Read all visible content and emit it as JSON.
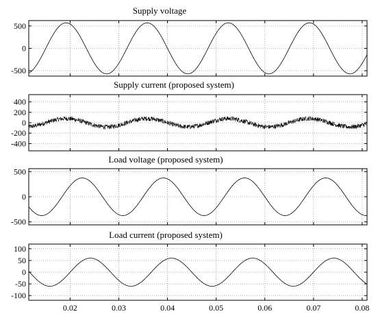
{
  "chart_data": [
    {
      "type": "line",
      "title": "Supply voltage",
      "xlabel": "",
      "ylabel": "",
      "xlim": [
        0.0115,
        0.081
      ],
      "ylim": [
        -620,
        620
      ],
      "x_ticks": [
        "0.02",
        "0.03",
        "0.04",
        "0.05",
        "0.06",
        "0.07",
        "0.08"
      ],
      "y_ticks": [
        {
          "value": 500,
          "label": "500"
        },
        {
          "value": 0,
          "label": "0"
        },
        {
          "value": -500,
          "label": "-500"
        }
      ],
      "grid": true,
      "waveform": {
        "amplitude": 570,
        "frequency_hz": 60,
        "phase_deg": 36,
        "noise": 0
      },
      "series": [
        {
          "values_description": "sinusoid",
          "amplitude": 570,
          "frequency_hz": 60
        }
      ]
    },
    {
      "type": "line",
      "title": "Supply current (proposed system)",
      "xlabel": "",
      "ylabel": "",
      "xlim": [
        0.0115,
        0.081
      ],
      "ylim": [
        -540,
        540
      ],
      "x_ticks": [
        "0.02",
        "0.03",
        "0.04",
        "0.05",
        "0.06",
        "0.07",
        "0.08"
      ],
      "y_ticks": [
        {
          "value": 400,
          "label": "400"
        },
        {
          "value": 200,
          "label": "200"
        },
        {
          "value": 0,
          "label": "0"
        },
        {
          "value": -200,
          "label": "-200"
        },
        {
          "value": -400,
          "label": "-400"
        }
      ],
      "grid": true,
      "waveform": {
        "amplitude": 80,
        "frequency_hz": 60,
        "phase_deg": 36,
        "noise": 45
      },
      "series": [
        {
          "values_description": "noisy sinusoid",
          "amplitude": 80,
          "frequency_hz": 60
        }
      ]
    },
    {
      "type": "line",
      "title": "Load voltage (proposed system)",
      "xlabel": "",
      "ylabel": "",
      "xlim": [
        0.0115,
        0.081
      ],
      "ylim": [
        -560,
        560
      ],
      "x_ticks": [
        "0.02",
        "0.03",
        "0.04",
        "0.05",
        "0.06",
        "0.07",
        "0.08"
      ],
      "y_ticks": [
        {
          "value": 500,
          "label": "500"
        },
        {
          "value": 0,
          "label": "0"
        },
        {
          "value": -500,
          "label": "-500"
        }
      ],
      "grid": true,
      "waveform": {
        "amplitude": 375,
        "frequency_hz": 60,
        "phase_deg": -36,
        "noise": 0
      },
      "series": [
        {
          "values_description": "sinusoid",
          "amplitude": 375,
          "frequency_hz": 60
        }
      ]
    },
    {
      "type": "line",
      "title": "Load current (proposed system)",
      "xlabel": "",
      "ylabel": "",
      "xlim": [
        0.0115,
        0.081
      ],
      "ylim": [
        -120,
        120
      ],
      "x_ticks": [
        "0.02",
        "0.03",
        "0.04",
        "0.05",
        "0.06",
        "0.07",
        "0.08"
      ],
      "y_ticks": [
        {
          "value": 100,
          "label": "100"
        },
        {
          "value": 50,
          "label": "50"
        },
        {
          "value": 0,
          "label": "0"
        },
        {
          "value": -50,
          "label": "-50"
        },
        {
          "value": -100,
          "label": "-100"
        }
      ],
      "grid": true,
      "waveform": {
        "amplitude": 60,
        "frequency_hz": 60,
        "phase_deg": -72,
        "noise": 0
      },
      "series": [
        {
          "values_description": "sinusoid",
          "amplitude": 60,
          "frequency_hz": 60
        }
      ]
    }
  ],
  "colors": {
    "line": "#000000",
    "grid": "#9a9a9a",
    "axes": "#000000",
    "background": "#ffffff"
  }
}
